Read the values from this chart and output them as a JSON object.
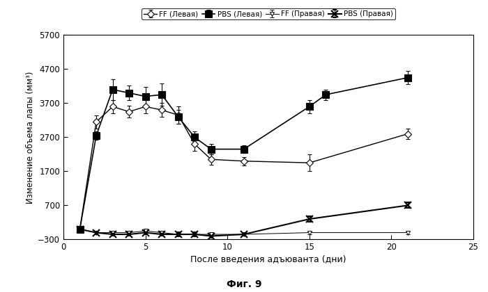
{
  "title": "Фиг. 9",
  "xlabel": "После введения адъюванта (дни)",
  "ylabel": "Изменение объема лапы (мм³)",
  "xlim": [
    0,
    25
  ],
  "ylim": [
    -300,
    5700
  ],
  "yticks": [
    -300,
    700,
    1700,
    2700,
    3700,
    4700,
    5700
  ],
  "xticks": [
    0,
    5,
    10,
    15,
    20,
    25
  ],
  "FF_left_x": [
    1,
    2,
    3,
    4,
    5,
    6,
    7,
    8,
    9,
    11,
    15,
    21
  ],
  "FF_left_y": [
    0,
    3150,
    3600,
    3450,
    3600,
    3500,
    3350,
    2500,
    2050,
    2000,
    1950,
    2800
  ],
  "FF_left_err": [
    30,
    200,
    200,
    180,
    200,
    200,
    250,
    200,
    150,
    120,
    250,
    150
  ],
  "PBS_left_x": [
    1,
    2,
    3,
    4,
    5,
    6,
    7,
    8,
    9,
    11,
    15,
    16,
    21
  ],
  "PBS_left_y": [
    0,
    2750,
    4100,
    4000,
    3900,
    3950,
    3300,
    2700,
    2350,
    2350,
    3600,
    3950,
    4450
  ],
  "PBS_left_err": [
    30,
    120,
    300,
    220,
    280,
    320,
    200,
    180,
    150,
    120,
    200,
    150,
    200
  ],
  "FF_right_x": [
    1,
    2,
    3,
    4,
    5,
    6,
    7,
    8,
    9,
    11,
    15,
    21
  ],
  "FF_right_y": [
    0,
    -100,
    -100,
    -100,
    -50,
    -100,
    -150,
    -150,
    -150,
    -150,
    -100,
    -100
  ],
  "FF_right_err": [
    20,
    40,
    40,
    40,
    40,
    40,
    60,
    70,
    60,
    40,
    40,
    40
  ],
  "PBS_right_x": [
    1,
    2,
    3,
    4,
    5,
    6,
    7,
    8,
    9,
    11,
    15,
    21
  ],
  "PBS_right_y": [
    0,
    -100,
    -150,
    -150,
    -100,
    -150,
    -150,
    -150,
    -200,
    -150,
    300,
    700
  ],
  "PBS_right_err": [
    20,
    40,
    40,
    40,
    40,
    40,
    60,
    60,
    50,
    40,
    80,
    80
  ],
  "legend_labels": [
    "FF (Левая)",
    "PBS (Левая)",
    "FF (Правая)",
    "PBS (Правая)"
  ],
  "bg_color": "#ffffff"
}
